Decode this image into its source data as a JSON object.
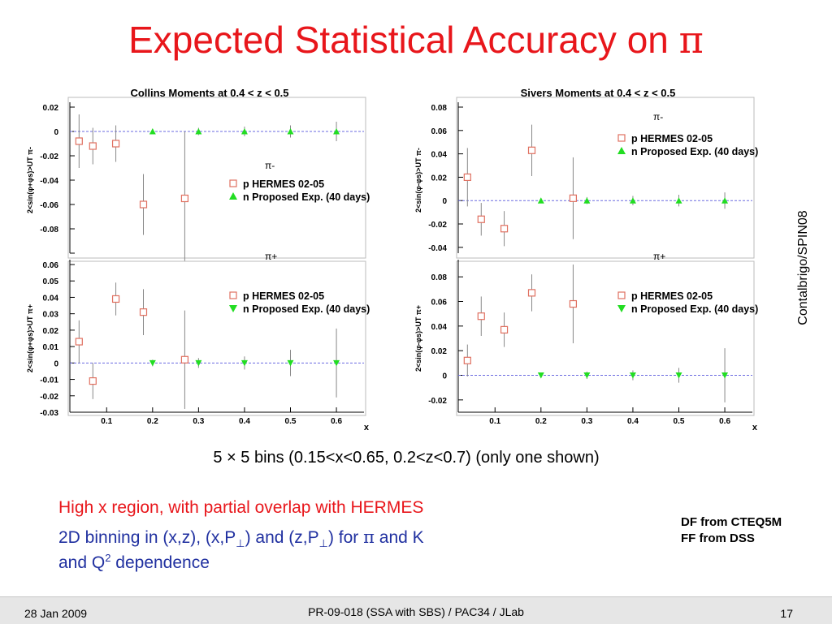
{
  "slide": {
    "title_text": "Expected Statistical Accuracy on",
    "title_symbol": "π",
    "side_note": "Contalbrigo/SPIN08",
    "bins_caption": "5 × 5 bins (0.15<x<0.65, 0.2<z<0.7) (only one shown)",
    "region_lines": [
      {
        "text": "High x region, with partial overlap with HERMES",
        "color": "#e8161b"
      },
      {
        "parts": [
          "2D binning in (x,z), (x,P",
          "⊥",
          ") and (z,P",
          "⊥",
          ") for ",
          "π",
          " and K"
        ],
        "color": "#2030a0"
      },
      {
        "parts": [
          "and Q",
          "2",
          " dependence"
        ],
        "color": "#2030a0"
      }
    ],
    "sources": [
      "DF from CTEQ5M",
      "FF from DSS"
    ],
    "footer": {
      "date": "28 Jan 2009",
      "center": "PR-09-018 (SSA with SBS) / PAC34 / JLab",
      "page": "17"
    }
  },
  "colors": {
    "title": "#e8161b",
    "hermes": "#e07060",
    "proposed": "#22dd22",
    "zero_line": "#6a6ae0",
    "error_bar": "#888888"
  },
  "chart_data": [
    {
      "type": "scatter",
      "title": "Collins Moments at 0.4 < z < 0.5",
      "panels": [
        {
          "label": "π-",
          "ylabel": "2<sin(φ+φs)>UT π-",
          "ylim": [
            -0.1,
            0.02
          ],
          "yticks": [
            -0.1,
            -0.08,
            -0.06,
            -0.04,
            -0.02,
            0,
            0.02
          ],
          "ytick_labels": [
            "",
            "-0.08",
            "-0.06",
            "-0.04",
            "-0.02",
            "0",
            "0.02"
          ],
          "series": [
            {
              "name": "p HERMES 02-05",
              "marker": "square",
              "x": [
                0.04,
                0.07,
                0.12,
                0.18,
                0.27
              ],
              "y": [
                -0.008,
                -0.012,
                -0.01,
                -0.06,
                -0.055
              ],
              "err": [
                0.022,
                0.015,
                0.015,
                0.025,
                0.055
              ]
            },
            {
              "name": "n Proposed Exp. (40 days)",
              "marker": "triangle-up",
              "x": [
                0.2,
                0.3,
                0.4,
                0.5,
                0.6
              ],
              "y": [
                0,
                0,
                0,
                0,
                0
              ],
              "err": [
                0.002,
                0.003,
                0.004,
                0.005,
                0.008
              ]
            }
          ]
        },
        {
          "label": "π+",
          "ylabel": "2<sin(φ+φs)>UT π+",
          "ylim": [
            -0.03,
            0.06
          ],
          "yticks": [
            -0.03,
            -0.02,
            -0.01,
            0,
            0.01,
            0.02,
            0.03,
            0.04,
            0.05,
            0.06
          ],
          "ytick_labels": [
            "-0.03",
            "-0.02",
            "-0.01",
            "0",
            "0.01",
            "0.02",
            "0.03",
            "0.04",
            "0.05",
            "0.06"
          ],
          "series": [
            {
              "name": "p HERMES 02-05",
              "marker": "square",
              "x": [
                0.04,
                0.07,
                0.12,
                0.18,
                0.27
              ],
              "y": [
                0.013,
                -0.011,
                0.039,
                0.031,
                0.002
              ],
              "err": [
                0.013,
                0.011,
                0.01,
                0.014,
                0.03
              ]
            },
            {
              "name": "n Proposed Exp. (40 days)",
              "marker": "triangle-down",
              "x": [
                0.2,
                0.3,
                0.4,
                0.5,
                0.6
              ],
              "y": [
                0,
                0,
                0,
                0,
                0
              ],
              "err": [
                0.002,
                0.003,
                0.004,
                0.008,
                0.021
              ]
            }
          ]
        }
      ],
      "xlabel": "x",
      "xlim": [
        0.02,
        0.66
      ],
      "xticks": [
        0.1,
        0.2,
        0.3,
        0.4,
        0.5,
        0.6
      ]
    },
    {
      "type": "scatter",
      "title": "Sivers Moments at 0.4 < z < 0.5",
      "panels": [
        {
          "label": "π-",
          "ylabel": "2<sin(φ-φs)>UT π-",
          "ylim": [
            -0.045,
            0.08
          ],
          "yticks": [
            -0.04,
            -0.02,
            0,
            0.02,
            0.04,
            0.06,
            0.08
          ],
          "ytick_labels": [
            "-0.04",
            "-0.02",
            "0",
            "0.02",
            "0.04",
            "0.06",
            "0.08"
          ],
          "series": [
            {
              "name": "p HERMES 02-05",
              "marker": "square",
              "x": [
                0.04,
                0.07,
                0.12,
                0.18,
                0.27
              ],
              "y": [
                0.02,
                -0.016,
                -0.024,
                0.043,
                0.002
              ],
              "err": [
                0.025,
                0.014,
                0.015,
                0.022,
                0.035
              ]
            },
            {
              "name": "n Proposed Exp. (40 days)",
              "marker": "triangle-up",
              "x": [
                0.2,
                0.3,
                0.4,
                0.5,
                0.6
              ],
              "y": [
                0,
                0,
                0,
                0,
                0
              ],
              "err": [
                0.002,
                0.003,
                0.004,
                0.005,
                0.007
              ]
            }
          ]
        },
        {
          "label": "π+",
          "ylabel": "2<sin(φ-φs)>UT π+",
          "ylim": [
            -0.03,
            0.09
          ],
          "yticks": [
            -0.02,
            0,
            0.02,
            0.04,
            0.06,
            0.08
          ],
          "ytick_labels": [
            "-0.02",
            "0",
            "0.02",
            "0.04",
            "0.06",
            "0.08"
          ],
          "series": [
            {
              "name": "p HERMES 02-05",
              "marker": "square",
              "x": [
                0.04,
                0.07,
                0.12,
                0.18,
                0.27
              ],
              "y": [
                0.012,
                0.048,
                0.037,
                0.067,
                0.058
              ],
              "err": [
                0.013,
                0.016,
                0.014,
                0.015,
                0.032
              ]
            },
            {
              "name": "n Proposed Exp. (40 days)",
              "marker": "triangle-down",
              "x": [
                0.2,
                0.3,
                0.4,
                0.5,
                0.6
              ],
              "y": [
                0,
                0,
                0,
                0,
                0
              ],
              "err": [
                0.002,
                0.003,
                0.004,
                0.006,
                0.022
              ]
            }
          ]
        }
      ],
      "xlabel": "x",
      "xlim": [
        0.02,
        0.66
      ],
      "xticks": [
        0.1,
        0.2,
        0.3,
        0.4,
        0.5,
        0.6
      ]
    }
  ]
}
